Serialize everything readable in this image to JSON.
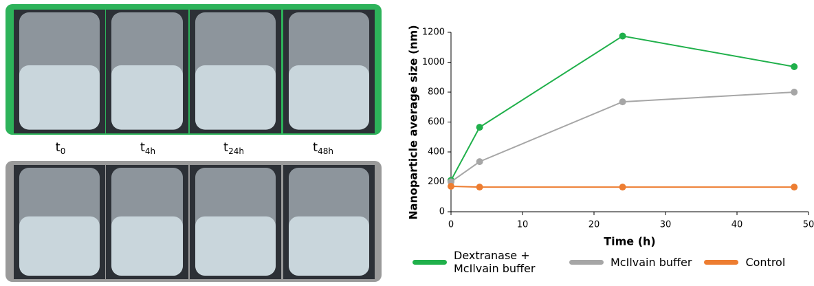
{
  "photo_labels": [
    {
      "base": "t",
      "sub": "0"
    },
    {
      "base": "t",
      "sub": "4h"
    },
    {
      "base": "t",
      "sub": "24h"
    },
    {
      "base": "t",
      "sub": "48h"
    }
  ],
  "chart_data": {
    "type": "line",
    "xlabel": "Time (h)",
    "ylabel": "Nanoparticle average size (nm)",
    "x": [
      0,
      4,
      24,
      48
    ],
    "series": [
      {
        "name": "Dextranase + McIlvain buffer",
        "color": "#20b04b",
        "values": [
          210,
          565,
          1175,
          970
        ]
      },
      {
        "name": "McIlvain buffer",
        "color": "#a6a6a6",
        "values": [
          200,
          335,
          735,
          800
        ]
      },
      {
        "name": "Control",
        "color": "#ed7d31",
        "values": [
          170,
          165,
          165,
          165
        ]
      }
    ],
    "xlim": [
      0,
      50
    ],
    "xticks": [
      0,
      10,
      20,
      30,
      40,
      50
    ],
    "ylim": [
      0,
      1200
    ],
    "yticks": [
      0,
      200,
      400,
      600,
      800,
      1000,
      1200
    ]
  }
}
